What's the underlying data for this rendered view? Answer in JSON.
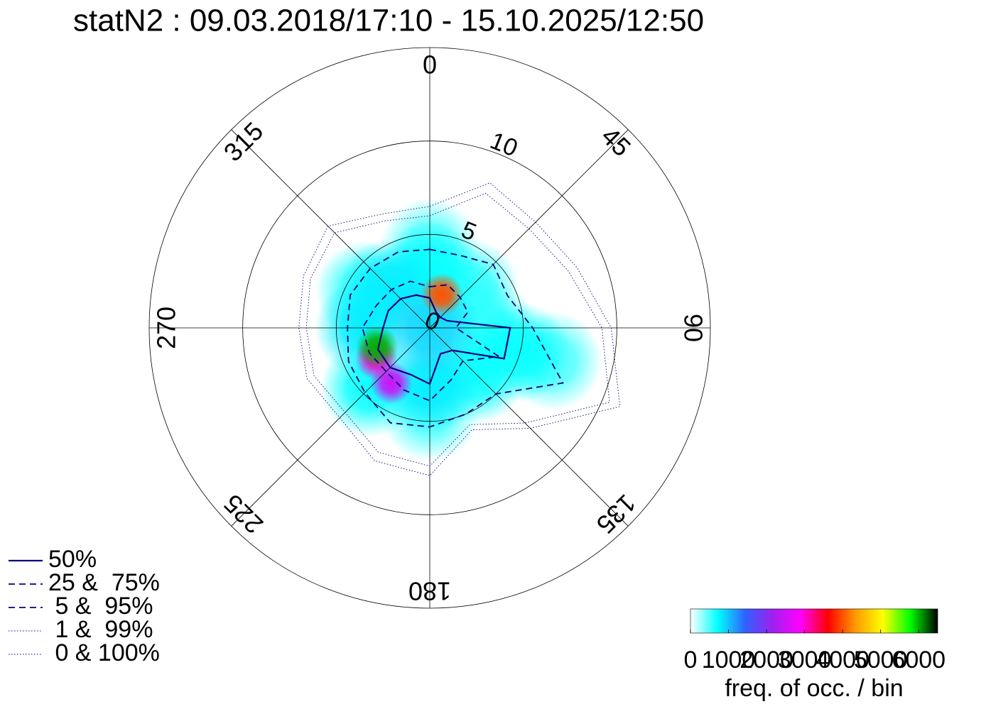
{
  "chart_data": {
    "type": "polar",
    "title": "statN2 : 09.03.2018/17:10 - 15.10.2025/12:50",
    "theta_ticks": [
      0,
      45,
      90,
      135,
      180,
      225,
      270,
      315
    ],
    "rlim": [
      0,
      15
    ],
    "rticks": [
      0,
      5,
      10
    ],
    "directions": [
      0,
      22.5,
      45,
      67.5,
      90,
      112.5,
      135,
      157.5,
      180,
      202.5,
      225,
      247.5,
      270,
      292.5,
      315,
      337.5
    ],
    "series": [
      {
        "name": "50%",
        "color": "#000080",
        "style": "solid",
        "values": [
          1.6,
          0.9,
          0.8,
          1.0,
          4.3,
          4.3,
          1.7,
          1.5,
          3.0,
          2.7,
          3.0,
          3.0,
          2.5,
          2.4,
          2.2,
          1.9
        ]
      },
      {
        "name": "25 &  75%",
        "color": "#000080",
        "style": "dashed",
        "values": [
          2.2,
          2.5,
          2.3,
          2.2,
          1.4,
          4.0,
          2.5,
          3.0,
          3.9,
          3.6,
          3.3,
          3.5,
          3.6,
          3.1,
          2.9,
          2.7
        ]
      },
      {
        "name": " 5 &  95%",
        "color": "#000080",
        "style": "dashed",
        "values": [
          4.2,
          4.2,
          4.8,
          4.5,
          5.5,
          7.7,
          5.0,
          5.0,
          5.3,
          5.5,
          4.9,
          4.7,
          4.4,
          4.6,
          4.5,
          4.4
        ]
      },
      {
        "name": " 1 &  99%",
        "color": "#000080",
        "style": "dotted",
        "values": [
          6.0,
          7.8,
          7.5,
          8.0,
          9.2,
          10.4,
          7.2,
          5.6,
          7.4,
          7.2,
          6.4,
          6.7,
          6.6,
          6.9,
          7.2,
          6.2
        ]
      },
      {
        "name": " 0 & 100%",
        "color": "#000080",
        "style": "dotted",
        "values": [
          6.5,
          8.4,
          8.0,
          8.5,
          9.7,
          11.0,
          7.6,
          5.9,
          7.9,
          7.7,
          6.8,
          7.1,
          7.0,
          7.3,
          7.7,
          6.6
        ]
      }
    ],
    "density": {
      "dir": [
        0,
        0,
        0,
        45,
        90,
        105,
        105,
        135,
        180,
        180,
        225,
        270,
        315,
        300,
        240,
        215,
        20,
        250
      ],
      "speed": [
        0,
        3,
        4.3,
        3,
        3,
        5,
        6.8,
        3.5,
        3,
        4.5,
        4.5,
        3.5,
        3,
        4,
        3.3,
        3.6,
        1.9,
        3
      ],
      "freq": [
        900,
        700,
        500,
        600,
        600,
        700,
        500,
        700,
        800,
        500,
        700,
        800,
        800,
        600,
        3000,
        2500,
        4000,
        6000
      ]
    },
    "colorbar": {
      "label": "freq. of occ. / bin",
      "clim": [
        0,
        6500
      ],
      "ticks": [
        0,
        1000,
        2000,
        3000,
        4000,
        5000,
        6000
      ],
      "colors": [
        "#ffffff",
        "#00ffff",
        "#3060ff",
        "#a020f0",
        "#ff00ff",
        "#ff0000",
        "#ff9900",
        "#ffff00",
        "#00ff00",
        "#000000"
      ]
    }
  }
}
